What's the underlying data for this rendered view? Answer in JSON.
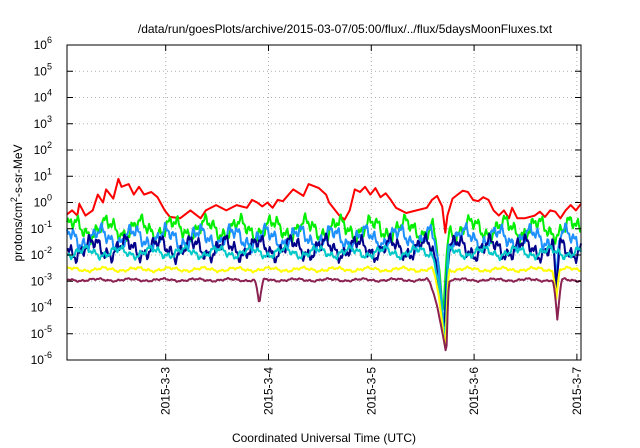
{
  "chart_data": {
    "type": "line",
    "title": "/data/run/goesPlots/archive/2015-03-07/05:00/flux/../flux/5daysMoonFluxes.txt",
    "xlabel": "Coordinated Universal Time (UTC)",
    "ylabel": "protons/cm2-s-sr-MeV",
    "ylabel_parts": {
      "base": "protons/cm",
      "sup": "2",
      "rest": "-s-sr-MeV"
    },
    "y_scale": "log",
    "ylim_exponent": [
      -6,
      6
    ],
    "y_ticks": [
      {
        "exp": "-6",
        "label": "10"
      },
      {
        "exp": "-5",
        "label": "10"
      },
      {
        "exp": "-4",
        "label": "10"
      },
      {
        "exp": "-3",
        "label": "10"
      },
      {
        "exp": "-2",
        "label": "10"
      },
      {
        "exp": "-1",
        "label": "10"
      },
      {
        "exp": "0",
        "label": "10"
      },
      {
        "exp": "1",
        "label": "10"
      },
      {
        "exp": "2",
        "label": "10"
      },
      {
        "exp": "3",
        "label": "10"
      },
      {
        "exp": "4",
        "label": "10"
      },
      {
        "exp": "5",
        "label": "10"
      },
      {
        "exp": "6",
        "label": "10"
      }
    ],
    "x_range_days": [
      0,
      5
    ],
    "x_ticks": [
      {
        "label": "2015-3-3",
        "day": 0.96
      },
      {
        "label": "2015-3-4",
        "day": 1.96
      },
      {
        "label": "2015-3-5",
        "day": 2.96
      },
      {
        "label": "2015-3-6",
        "day": 3.96
      },
      {
        "label": "2015-3-7",
        "day": 4.96
      }
    ],
    "grid": true,
    "legend": "none",
    "series": [
      {
        "color": "#ff0000",
        "points": [
          [
            0,
            -0.45
          ],
          [
            0.05,
            -0.3
          ],
          [
            0.1,
            -0.5
          ],
          [
            0.12,
            -0.05
          ],
          [
            0.18,
            -0.5
          ],
          [
            0.25,
            -0.3
          ],
          [
            0.3,
            0.3
          ],
          [
            0.35,
            0.0
          ],
          [
            0.38,
            0.5
          ],
          [
            0.45,
            0.15
          ],
          [
            0.5,
            0.9
          ],
          [
            0.53,
            0.6
          ],
          [
            0.6,
            0.7
          ],
          [
            0.65,
            0.3
          ],
          [
            0.7,
            0.6
          ],
          [
            0.75,
            0.3
          ],
          [
            0.82,
            0.4
          ],
          [
            0.88,
            0.2
          ],
          [
            0.95,
            -0.3
          ],
          [
            1.0,
            -0.55
          ],
          [
            1.1,
            -0.6
          ],
          [
            1.2,
            -0.3
          ],
          [
            1.3,
            -0.6
          ],
          [
            1.35,
            -0.3
          ],
          [
            1.45,
            -0.1
          ],
          [
            1.55,
            -0.3
          ],
          [
            1.65,
            -0.1
          ],
          [
            1.75,
            -0.2
          ],
          [
            1.8,
            0.1
          ],
          [
            1.85,
            0.0
          ],
          [
            1.9,
            -0.15
          ],
          [
            1.95,
            0.0
          ],
          [
            2.0,
            -0.2
          ],
          [
            2.05,
            0.1
          ],
          [
            2.1,
            0.05
          ],
          [
            2.2,
            0.5
          ],
          [
            2.3,
            0.25
          ],
          [
            2.35,
            0.7
          ],
          [
            2.45,
            0.55
          ],
          [
            2.52,
            0.3
          ],
          [
            2.55,
            0.0
          ],
          [
            2.6,
            -0.25
          ],
          [
            2.65,
            -0.5
          ],
          [
            2.7,
            -0.65
          ],
          [
            2.75,
            -0.3
          ],
          [
            2.8,
            0.5
          ],
          [
            2.85,
            0.4
          ],
          [
            2.9,
            0.6
          ],
          [
            2.95,
            0.3
          ],
          [
            3.0,
            0.55
          ],
          [
            3.05,
            0.2
          ],
          [
            3.1,
            0.35
          ],
          [
            3.15,
            0.1
          ],
          [
            3.2,
            -0.2
          ],
          [
            3.3,
            -0.4
          ],
          [
            3.4,
            -0.3
          ],
          [
            3.5,
            -0.2
          ],
          [
            3.55,
            0.1
          ],
          [
            3.6,
            0.25
          ],
          [
            3.65,
            -0.15
          ],
          [
            3.68,
            -1.15
          ],
          [
            3.7,
            -0.5
          ],
          [
            3.75,
            0.15
          ],
          [
            3.8,
            0.3
          ],
          [
            3.85,
            0.45
          ],
          [
            3.9,
            0.4
          ],
          [
            3.95,
            0.1
          ],
          [
            4.0,
            0.05
          ],
          [
            4.05,
            0.2
          ],
          [
            4.1,
            0.1
          ],
          [
            4.15,
            -0.3
          ],
          [
            4.2,
            -0.5
          ],
          [
            4.25,
            -0.3
          ],
          [
            4.3,
            -0.6
          ],
          [
            4.33,
            -0.2
          ],
          [
            4.38,
            -0.6
          ],
          [
            4.45,
            -0.6
          ],
          [
            4.55,
            -0.5
          ],
          [
            4.6,
            -0.35
          ],
          [
            4.65,
            -0.55
          ],
          [
            4.7,
            -0.3
          ],
          [
            4.75,
            -0.35
          ],
          [
            4.8,
            -0.6
          ],
          [
            4.85,
            -0.3
          ],
          [
            4.9,
            -0.1
          ],
          [
            4.95,
            -0.3
          ],
          [
            5.0,
            -0.05
          ]
        ]
      },
      {
        "color": "#00ee00",
        "base": -1.0,
        "amp": 0.3,
        "phase": 0.3,
        "dips": [
          {
            "start": 3.55,
            "center": 3.66,
            "end": 3.72,
            "exp": -4.4
          }
        ]
      },
      {
        "color": "#1e90ff",
        "base": -1.35,
        "amp": 0.3,
        "phase": 1.6,
        "dips": [
          {
            "start": 3.55,
            "center": 3.67,
            "end": 3.72,
            "exp": -4.8
          },
          {
            "start": 4.72,
            "center": 4.76,
            "end": 4.8,
            "exp": -3.1
          }
        ]
      },
      {
        "color": "#00008b",
        "base": -1.75,
        "amp": 0.3,
        "phase": 3.0,
        "dips": [
          {
            "start": 3.55,
            "center": 3.67,
            "end": 3.72,
            "exp": -5.0
          },
          {
            "start": 4.72,
            "center": 4.76,
            "end": 4.8,
            "exp": -3.4
          }
        ]
      },
      {
        "color": "#00c8c8",
        "base": -1.9,
        "amp": 0.15,
        "phase": 4.4,
        "dips": [
          {
            "start": 3.55,
            "center": 3.68,
            "end": 3.72,
            "exp": -5.4
          }
        ]
      },
      {
        "color": "#ffff00",
        "base": -2.55,
        "amp": 0.06,
        "phase": 0.9,
        "dips": [
          {
            "start": 3.55,
            "center": 3.68,
            "end": 3.72,
            "exp": -5.7
          },
          {
            "start": 4.72,
            "center": 4.76,
            "end": 4.8,
            "exp": -3.7
          }
        ]
      },
      {
        "color": "#8b2252",
        "base": -2.95,
        "amp": 0.04,
        "phase": 2.2,
        "dips": [
          {
            "start": 1.82,
            "center": 1.87,
            "end": 1.92,
            "exp": -3.9
          },
          {
            "start": 3.5,
            "center": 3.69,
            "end": 3.72,
            "exp": -5.8
          },
          {
            "start": 4.72,
            "center": 4.77,
            "end": 4.82,
            "exp": -4.5
          }
        ]
      }
    ]
  }
}
